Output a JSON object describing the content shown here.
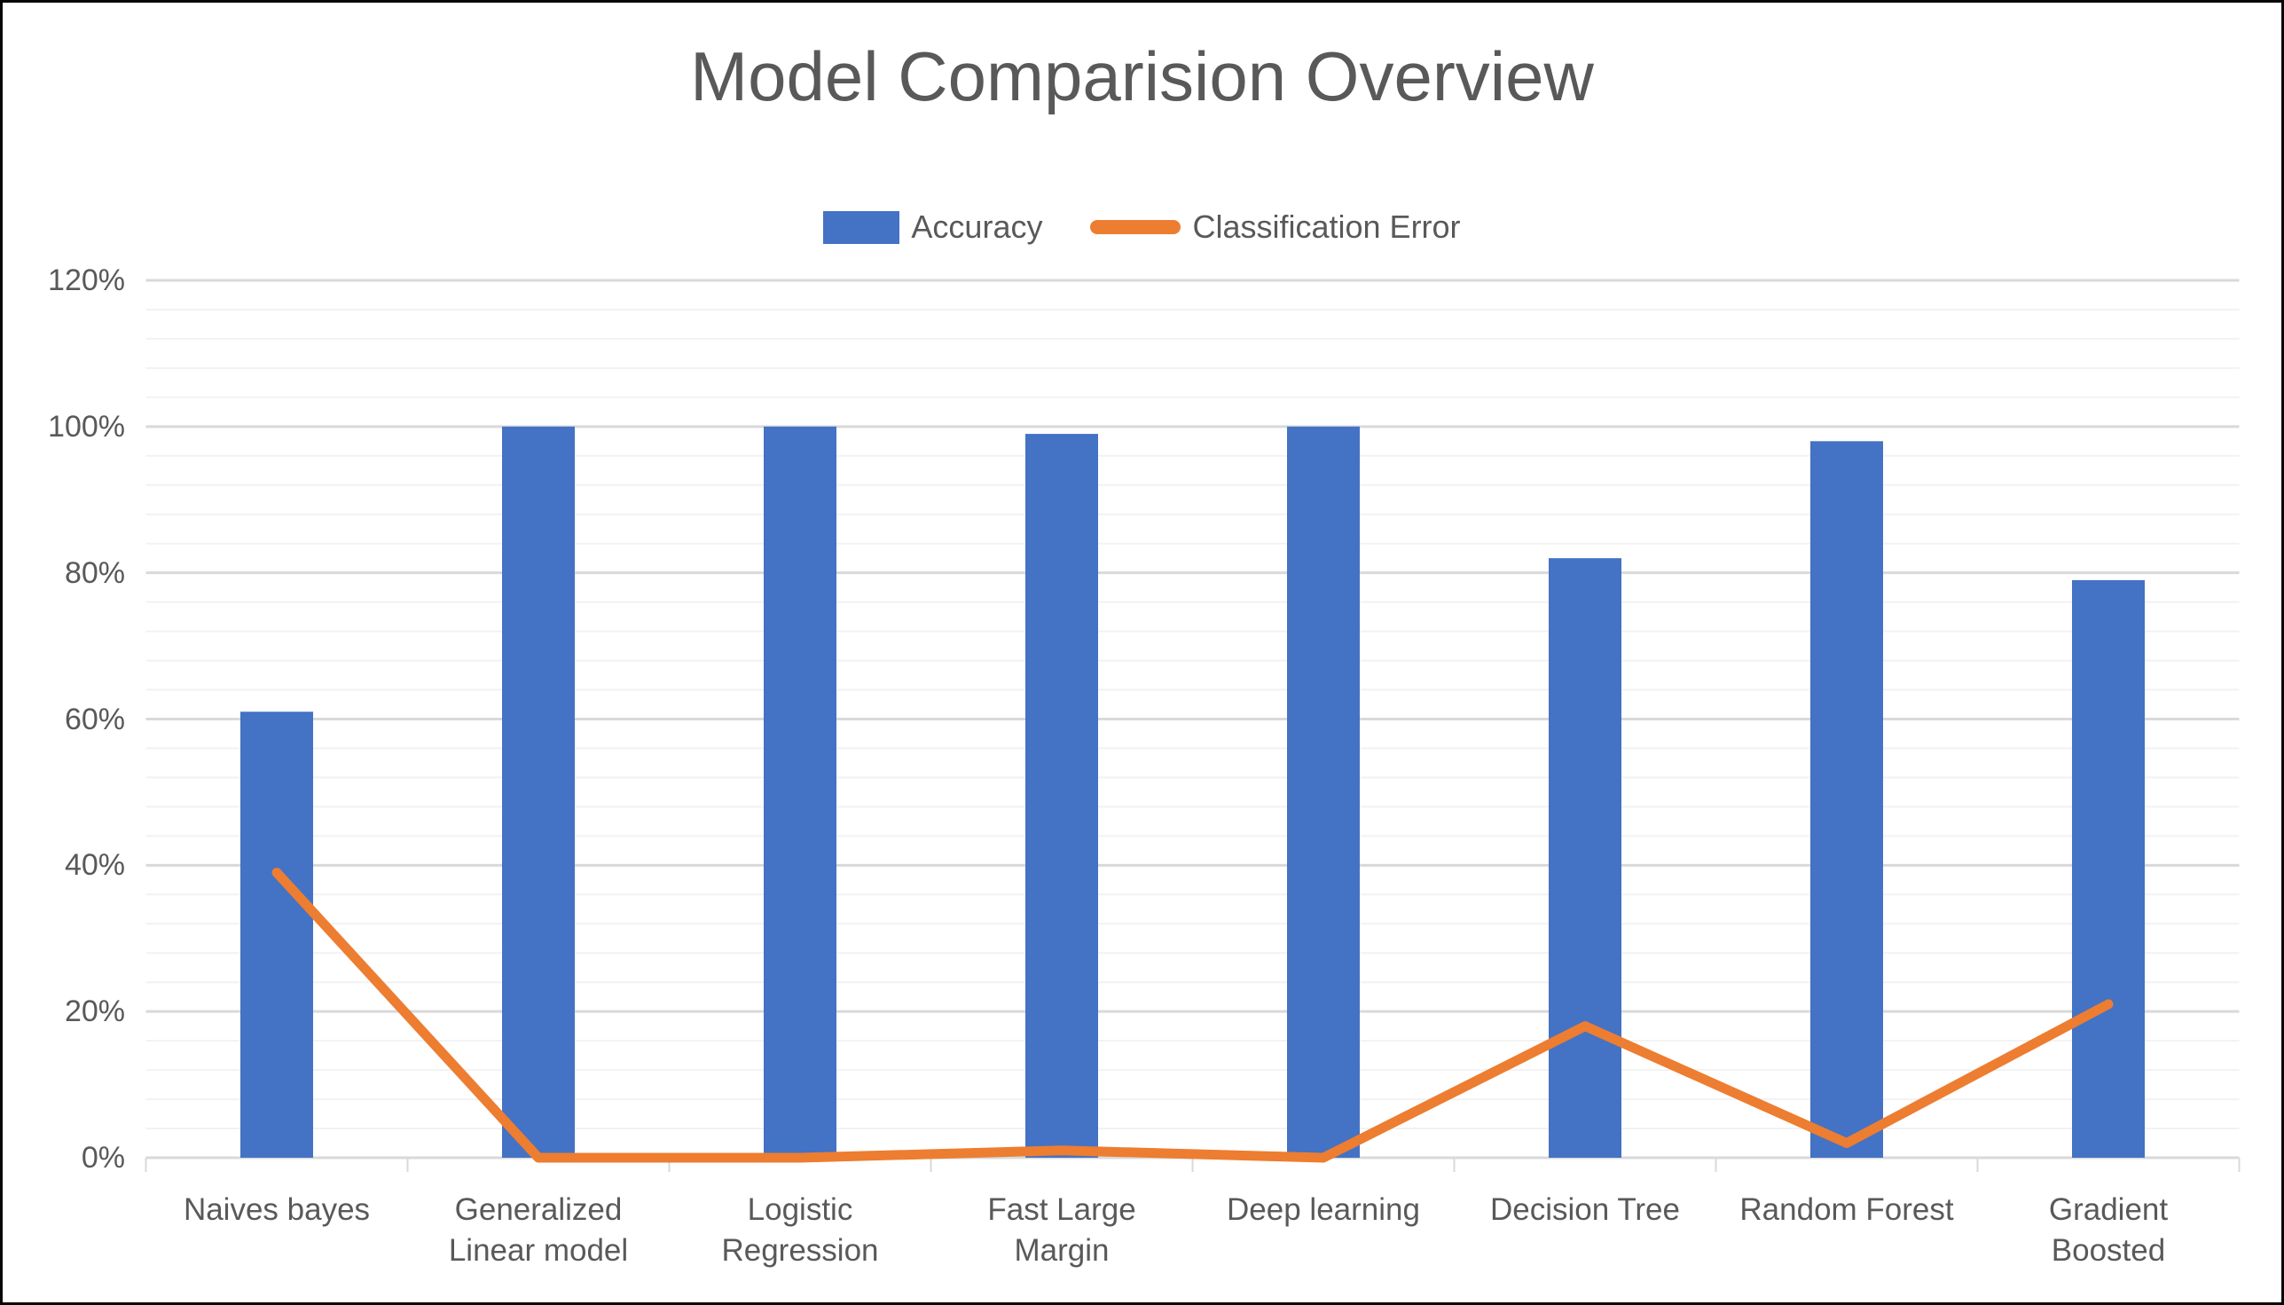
{
  "chart_data": {
    "type": "bar",
    "title": "Model Comparision Overview",
    "categories": [
      "Naives bayes",
      "Generalized Linear model",
      "Logistic Regression",
      "Fast Large Margin",
      "Deep learning",
      "Decision Tree",
      "Random Forest",
      "Gradient Boosted"
    ],
    "series": [
      {
        "name": "Accuracy",
        "type": "bar",
        "color": "#4472C4",
        "values": [
          61,
          100,
          100,
          99,
          100,
          82,
          98,
          79
        ]
      },
      {
        "name": "Classification Error",
        "type": "line",
        "color": "#ED7D31",
        "values": [
          39,
          0,
          0,
          1,
          0,
          18,
          2,
          21
        ]
      }
    ],
    "xlabel": "",
    "ylabel": "",
    "ylim": [
      0,
      120
    ],
    "y_major_unit": 20,
    "y_minor_unit": 4,
    "yticks": [
      "0%",
      "20%",
      "40%",
      "60%",
      "80%",
      "100%",
      "120%"
    ],
    "grid": "horizontal major+minor",
    "legend_position": "top-center"
  },
  "colors": {
    "accuracy_bar": "#4472C4",
    "error_line": "#ED7D31",
    "title_text": "#595959",
    "axis_text": "#595959",
    "major_grid": "#D9D9D9",
    "minor_grid": "#F2F2F2",
    "axis_tick": "#D9D9D9",
    "frame_border": "#060606",
    "background": "#FFFFFF"
  }
}
